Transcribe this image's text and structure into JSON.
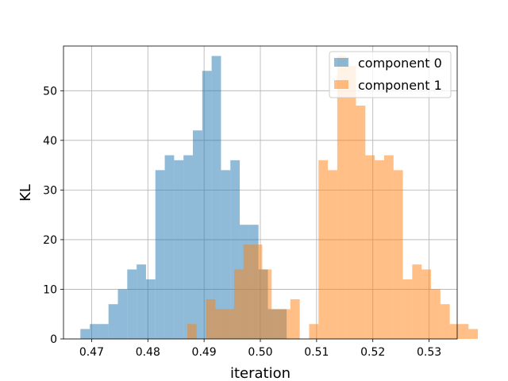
{
  "chart_data": {
    "type": "bar",
    "subtype": "histogram",
    "title": "",
    "xlabel": "iteration",
    "ylabel": "KL",
    "xlim": [
      0.465,
      0.535
    ],
    "ylim": [
      0,
      59
    ],
    "xticks": [
      0.47,
      0.48,
      0.49,
      0.5,
      0.51,
      0.52,
      0.53
    ],
    "xtick_labels": [
      "0.47",
      "0.48",
      "0.49",
      "0.50",
      "0.51",
      "0.52",
      "0.53"
    ],
    "yticks": [
      0,
      10,
      20,
      30,
      40,
      50
    ],
    "ytick_labels": [
      "0",
      "10",
      "20",
      "30",
      "40",
      "50"
    ],
    "grid": true,
    "legend_position": "top-right",
    "series": [
      {
        "name": "component 0",
        "color": "#1f77b4",
        "alpha": 0.5,
        "bin_start": 0.468,
        "bin_width": 0.001667,
        "counts": [
          2,
          3,
          3,
          7,
          10,
          14,
          15,
          12,
          34,
          37,
          36,
          37,
          42,
          54,
          57,
          34,
          36,
          23,
          23,
          14,
          6,
          6
        ]
      },
      {
        "name": "component 1",
        "color": "#ff7f0e",
        "alpha": 0.5,
        "bin_start": 0.487,
        "bin_width": 0.001667,
        "counts": [
          3,
          0,
          8,
          6,
          6,
          14,
          19,
          19,
          14,
          6,
          6,
          8,
          0,
          3,
          36,
          34,
          57,
          55,
          47,
          37,
          36,
          37,
          34,
          12,
          15,
          14,
          10,
          7,
          3,
          3,
          2
        ]
      }
    ]
  }
}
